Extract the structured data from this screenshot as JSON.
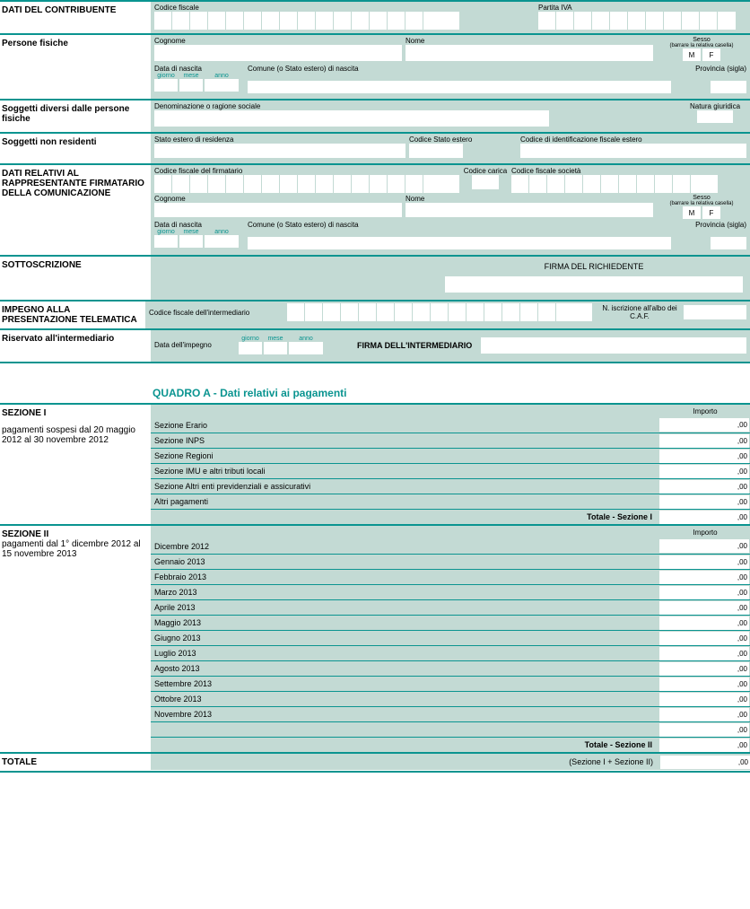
{
  "colors": {
    "accent": "#0a9490",
    "panel": "#c3dad4",
    "white": "#ffffff"
  },
  "decimals": ",00",
  "s_contribuente": {
    "title": "DATI DEL CONTRIBUENTE",
    "codice_fiscale": "Codice fiscale",
    "partita_iva": "Partita IVA"
  },
  "s_persone": {
    "title": "Persone fisiche",
    "cognome": "Cognome",
    "nome": "Nome",
    "sesso": "Sesso",
    "sesso_note": "(barrare la relativa casella)",
    "m": "M",
    "f": "F",
    "data_nascita": "Data di nascita",
    "giorno": "giorno",
    "mese": "mese",
    "anno": "anno",
    "comune": "Comune (o Stato estero) di nascita",
    "provincia": "Provincia (sigla)"
  },
  "s_diversi": {
    "title": "Soggetti diversi dalle persone fisiche",
    "denom": "Denominazione o ragione sociale",
    "natura": "Natura giuridica"
  },
  "s_nonres": {
    "title": "Soggetti non residenti",
    "stato": "Stato estero di residenza",
    "cod_stato": "Codice Stato estero",
    "cod_id": "Codice di identificazione fiscale estero"
  },
  "s_firmatario": {
    "title": "DATI RELATIVI AL RAPPRESENTANTE FIRMATARIO DELLA COMUNICAZIONE",
    "cf_firm": "Codice fiscale del firmatario",
    "cod_carica": "Codice carica",
    "cf_soc": "Codice fiscale società"
  },
  "s_sott": {
    "title": "SOTTOSCRIZIONE",
    "firma": "FIRMA DEL RICHIEDENTE"
  },
  "s_impegno": {
    "title": "IMPEGNO ALLA PRESENTAZIONE TELEMATICA",
    "cf_int": "Codice fiscale dell'intermediario",
    "n_iscr": "N. iscrizione all'albo dei C.A.F.",
    "riservato": "Riservato all'intermediario",
    "data_imp": "Data dell'impegno",
    "firma_int": "FIRMA DELL'INTERMEDIARIO"
  },
  "quadroA": {
    "title": "QUADRO A - Dati relativi ai pagamenti",
    "importo": "Importo",
    "sez1": {
      "title": "SEZIONE I",
      "sub": "pagamenti sospesi dal 20 maggio 2012 al 30 novembre 2012",
      "rows": [
        "Sezione Erario",
        "Sezione INPS",
        "Sezione Regioni",
        "Sezione IMU e altri tributi locali",
        "Sezione Altri enti previdenziali e assicurativi",
        "Altri pagamenti"
      ],
      "total": "Totale - Sezione I"
    },
    "sez2": {
      "title": "SEZIONE II",
      "sub": "pagamenti dal 1° dicembre 2012 al 15 novembre 2013",
      "rows": [
        "Dicembre 2012",
        "Gennaio 2013",
        "Febbraio 2013",
        "Marzo 2013",
        "Aprile 2013",
        "Maggio 2013",
        "Giugno 2013",
        "Luglio 2013",
        "Agosto 2013",
        "Settembre 2013",
        "Ottobre 2013",
        "Novembre 2013"
      ],
      "total": "Totale - Sezione II"
    },
    "totale": {
      "label": "TOTALE",
      "note": "(Sezione I + Sezione II)"
    }
  }
}
